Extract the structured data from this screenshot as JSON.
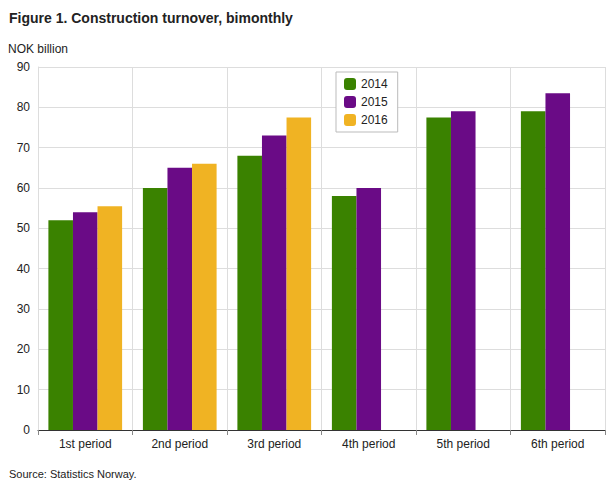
{
  "chart_data": {
    "type": "bar",
    "title": "Figure 1. Construction turnover, bimonthly",
    "y_label": "NOK billion",
    "source": "Source: Statistics Norway.",
    "categories": [
      "1st period",
      "2nd period",
      "3rd period",
      "4th period",
      "5th period",
      "6th period"
    ],
    "series": [
      {
        "name": "2014",
        "color": "#3a8200",
        "values": [
          52,
          60,
          68,
          58,
          77.5,
          79
        ]
      },
      {
        "name": "2015",
        "color": "#6a0b86",
        "values": [
          54,
          65,
          73,
          60,
          79,
          83.5
        ]
      },
      {
        "name": "2016",
        "color": "#f0b323",
        "values": [
          55.5,
          66,
          77.5,
          null,
          null,
          null
        ]
      }
    ],
    "ylim": [
      0,
      90
    ],
    "yticks": [
      0,
      10,
      20,
      30,
      40,
      50,
      60,
      70,
      80,
      90
    ],
    "grid": true,
    "legend": "top"
  }
}
